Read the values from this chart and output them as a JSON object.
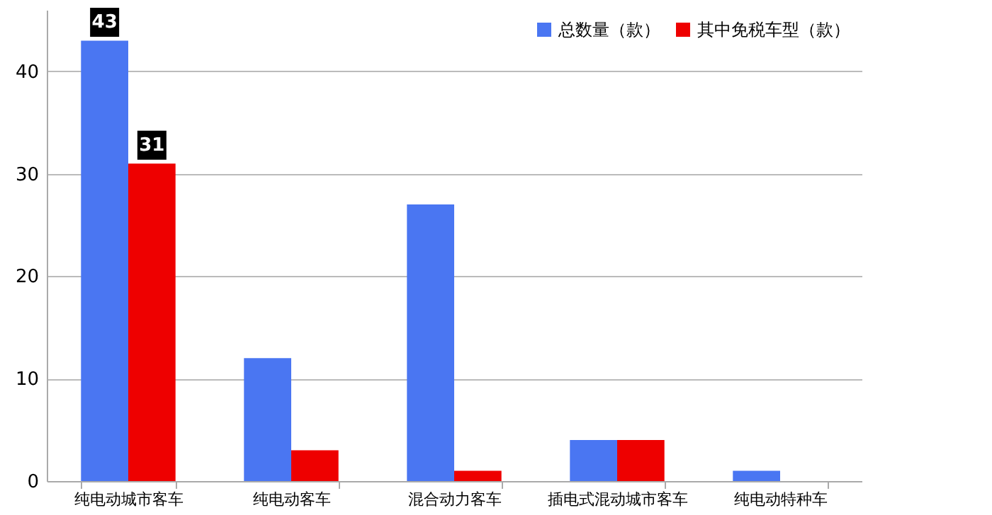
{
  "chart_data": {
    "type": "bar",
    "categories": [
      "纯电动城市客车",
      "纯电动客车",
      "混合动力客车",
      "插电式混动城市客车",
      "纯电动特种车"
    ],
    "series": [
      {
        "name": "总数量（款）",
        "color": "#4a76f2",
        "values": [
          43,
          12,
          27,
          4,
          1
        ],
        "value_labels": [
          "43",
          null,
          null,
          null,
          null
        ]
      },
      {
        "name": "其中免税车型（款）",
        "color": "#ee0000",
        "values": [
          31,
          3,
          1,
          4,
          0
        ],
        "value_labels": [
          "31",
          null,
          null,
          null,
          null
        ]
      }
    ],
    "ylim": [
      0,
      46
    ],
    "yticks": [
      0,
      10,
      20,
      30,
      40
    ],
    "grid": "y",
    "legend": "top right"
  }
}
